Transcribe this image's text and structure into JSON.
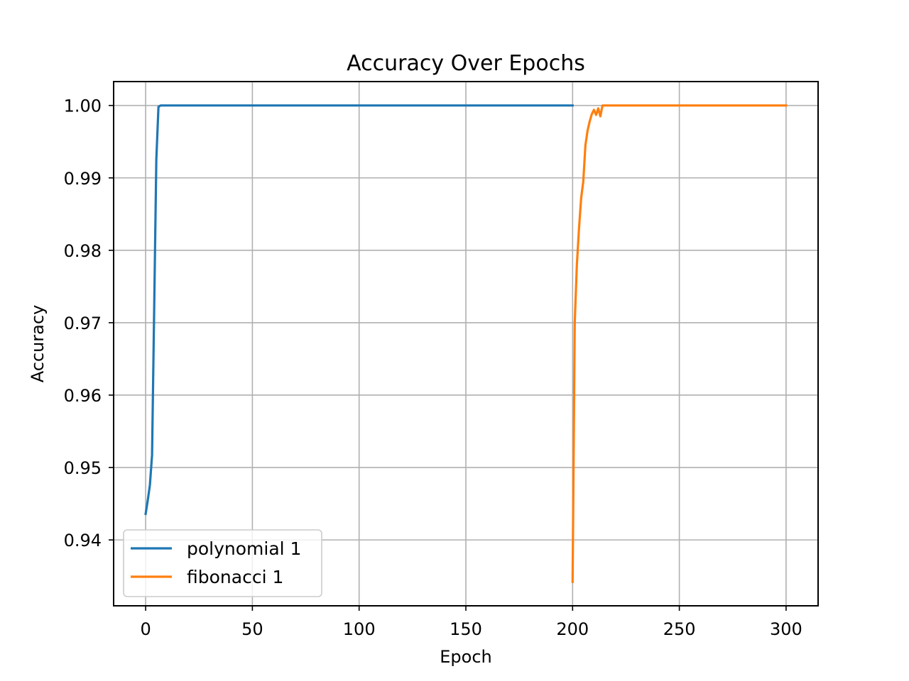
{
  "chart_data": {
    "type": "line",
    "title": "Accuracy Over Epochs",
    "xlabel": "Epoch",
    "ylabel": "Accuracy",
    "xlim": [
      -15,
      315
    ],
    "ylim": [
      0.9309,
      1.0033
    ],
    "xticks": [
      0,
      50,
      100,
      150,
      200,
      250,
      300
    ],
    "yticks": [
      0.94,
      0.95,
      0.96,
      0.97,
      0.98,
      0.99,
      1.0
    ],
    "ytick_labels": [
      "0.94",
      "0.95",
      "0.96",
      "0.97",
      "0.98",
      "0.99",
      "1.00"
    ],
    "grid": true,
    "legend_position": "lower-left",
    "series": [
      {
        "name": "polynomial 1",
        "color": "#1f77b4",
        "x": [
          0,
          1,
          2,
          3,
          4,
          5,
          6,
          7,
          10,
          50,
          100,
          150,
          200
        ],
        "y": [
          0.9436,
          0.9455,
          0.9476,
          0.9517,
          0.972,
          0.9925,
          0.9998,
          1.0,
          1.0,
          1.0,
          1.0,
          1.0,
          1.0
        ]
      },
      {
        "name": "fibonacci 1",
        "color": "#ff7f0e",
        "x": [
          200,
          201,
          202,
          203,
          204,
          205,
          206,
          207,
          208,
          209,
          210,
          211,
          212,
          213,
          214,
          215,
          220,
          250,
          300
        ],
        "y": [
          0.9342,
          0.97,
          0.978,
          0.983,
          0.9872,
          0.9895,
          0.9945,
          0.9965,
          0.9978,
          0.9988,
          0.9994,
          0.9987,
          0.9996,
          0.9985,
          1.0,
          1.0,
          1.0,
          1.0,
          1.0
        ]
      }
    ]
  }
}
